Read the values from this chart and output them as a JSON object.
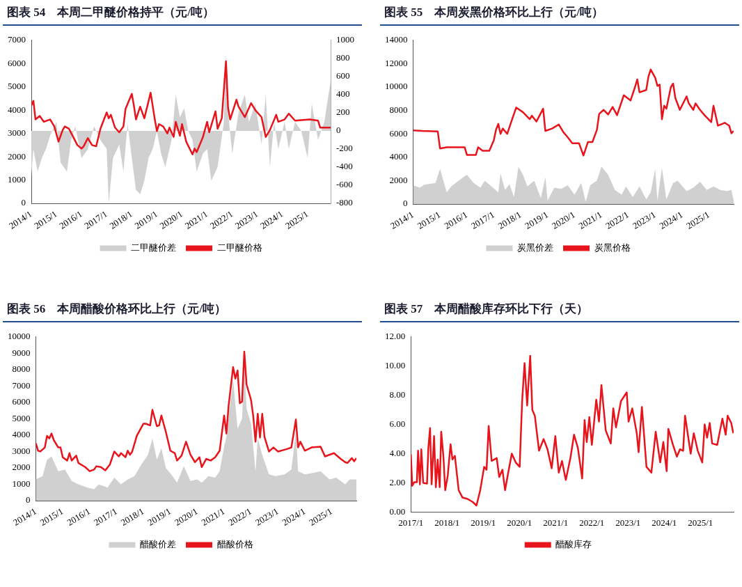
{
  "chart_data": [
    {
      "type": "line",
      "title": "图表 54　本周二甲醚价格持平（元/吨）",
      "legend": "bottom",
      "grid": false,
      "marker": "none",
      "xlim": [
        "2014-01",
        "2025-12"
      ],
      "xticks": [
        {
          "value": "2014-01",
          "label": "2014/1"
        },
        {
          "value": "2015-01",
          "label": "2015/1"
        },
        {
          "value": "2016-01",
          "label": "2016/1"
        },
        {
          "value": "2017-01",
          "label": "2017/1"
        },
        {
          "value": "2018-01",
          "label": "2018/1"
        },
        {
          "value": "2019-01",
          "label": "2019/1"
        },
        {
          "value": "2020-01",
          "label": "2020/1"
        },
        {
          "value": "2021-01",
          "label": "2021/1"
        },
        {
          "value": "2022-01",
          "label": "2022/1"
        },
        {
          "value": "2023-01",
          "label": "2023/1"
        },
        {
          "value": "2024-01",
          "label": "2024/1"
        },
        {
          "value": "2025-01",
          "label": "2025/1"
        }
      ],
      "ylim": [
        0,
        7000
      ],
      "yticks": [
        0,
        1000,
        2000,
        3000,
        4000,
        5000,
        6000,
        7000
      ],
      "y2lim": [
        -800,
        1000
      ],
      "y2ticks": [
        -800,
        -600,
        -400,
        -200,
        0,
        200,
        400,
        600,
        800,
        1000
      ],
      "series": [
        {
          "name": "二甲醚价差",
          "type": "area",
          "axis": "y2",
          "color": "#d0d0d0",
          "x": [
            "2014-01",
            "2014-02",
            "2014-04",
            "2014-06",
            "2014-08",
            "2014-10",
            "2014-12",
            "2015-01",
            "2015-03",
            "2015-06",
            "2015-08",
            "2015-10",
            "2016-01",
            "2016-04",
            "2016-07",
            "2016-10",
            "2017-01",
            "2017-02",
            "2017-04",
            "2017-07",
            "2017-09",
            "2017-11",
            "2018-01",
            "2018-03",
            "2018-05",
            "2018-07",
            "2018-09",
            "2018-11",
            "2019-01",
            "2019-03",
            "2019-05",
            "2019-08",
            "2019-10",
            "2019-12",
            "2020-02",
            "2020-04",
            "2020-06",
            "2020-08",
            "2020-11",
            "2021-01",
            "2021-03",
            "2021-06",
            "2021-09",
            "2021-10",
            "2021-11",
            "2022-01",
            "2022-04",
            "2022-07",
            "2022-09",
            "2022-12",
            "2023-03",
            "2023-05",
            "2023-07",
            "2023-09",
            "2023-11",
            "2024-02",
            "2024-04",
            "2024-07",
            "2024-10",
            "2025-01",
            "2025-03",
            "2025-06",
            "2025-09",
            "2025-12"
          ],
          "values": [
            -500,
            -200,
            -450,
            -300,
            -200,
            -50,
            50,
            100,
            -350,
            -450,
            -100,
            50,
            -300,
            -200,
            50,
            -100,
            -200,
            -800,
            -300,
            -150,
            -450,
            80,
            -300,
            -650,
            -700,
            -550,
            -300,
            -200,
            0,
            -250,
            -400,
            -100,
            400,
            150,
            250,
            0,
            -100,
            -450,
            -250,
            -200,
            -550,
            -400,
            100,
            850,
            200,
            -250,
            200,
            400,
            100,
            300,
            -150,
            400,
            -400,
            100,
            -200,
            100,
            -200,
            100,
            0,
            -300,
            300,
            -100,
            100,
            550
          ]
        },
        {
          "name": "二甲醚价格",
          "type": "line",
          "color": "#e8141c",
          "x": [
            "2014-01",
            "2014-02",
            "2014-03",
            "2014-05",
            "2014-07",
            "2014-10",
            "2014-12",
            "2015-02",
            "2015-04",
            "2015-05",
            "2015-07",
            "2015-09",
            "2015-11",
            "2016-01",
            "2016-02",
            "2016-04",
            "2016-06",
            "2016-08",
            "2016-10",
            "2017-01",
            "2017-02",
            "2017-03",
            "2017-05",
            "2017-07",
            "2017-09",
            "2017-10",
            "2018-01",
            "2018-02",
            "2018-03",
            "2018-05",
            "2018-07",
            "2018-10",
            "2018-12",
            "2019-01",
            "2019-02",
            "2019-04",
            "2019-06",
            "2019-07",
            "2019-09",
            "2019-10",
            "2019-12",
            "2020-01",
            "2020-03",
            "2020-06",
            "2020-07",
            "2020-08",
            "2020-11",
            "2021-01",
            "2021-02",
            "2021-05",
            "2021-06",
            "2021-08",
            "2021-10",
            "2021-11",
            "2021-12",
            "2022-03",
            "2022-04",
            "2022-07",
            "2022-10",
            "2022-12",
            "2023-03",
            "2023-05",
            "2023-07",
            "2023-10",
            "2023-11",
            "2024-02",
            "2024-04",
            "2024-07",
            "2025-02",
            "2025-06",
            "2025-07",
            "2025-12"
          ],
          "values": [
            4200,
            4400,
            3600,
            3750,
            3500,
            3600,
            3300,
            2650,
            3150,
            3300,
            3200,
            2850,
            2500,
            2350,
            2450,
            2800,
            2500,
            2450,
            3200,
            3900,
            3650,
            3800,
            3250,
            3050,
            3300,
            4050,
            4700,
            4200,
            3600,
            4150,
            3650,
            4750,
            3600,
            3100,
            3400,
            3300,
            3000,
            3250,
            2850,
            3500,
            2900,
            3400,
            2650,
            2100,
            2350,
            2200,
            2850,
            3500,
            3050,
            3950,
            3200,
            3650,
            6100,
            4100,
            3600,
            4450,
            4150,
            3700,
            4300,
            4000,
            3700,
            2850,
            3150,
            3800,
            3500,
            3600,
            3850,
            3550,
            3600,
            3550,
            3250,
            3250
          ]
        }
      ]
    },
    {
      "type": "line",
      "title": "图表 55　本周炭黑价格环比上行（元/吨）",
      "legend": "bottom",
      "grid": false,
      "marker": "none",
      "xlim": [
        "2014-01",
        "2025-12"
      ],
      "xticks": [
        {
          "value": "2014-01",
          "label": "2014/1"
        },
        {
          "value": "2015-01",
          "label": "2015/1"
        },
        {
          "value": "2016-01",
          "label": "2016/1"
        },
        {
          "value": "2017-01",
          "label": "2017/1"
        },
        {
          "value": "2018-01",
          "label": "2018/1"
        },
        {
          "value": "2019-01",
          "label": "2019/1"
        },
        {
          "value": "2020-01",
          "label": "2020/1"
        },
        {
          "value": "2021-01",
          "label": "2021/1"
        },
        {
          "value": "2022-01",
          "label": "2022/1"
        },
        {
          "value": "2023-01",
          "label": "2023/1"
        },
        {
          "value": "2024-01",
          "label": "2024/1"
        },
        {
          "value": "2025-01",
          "label": "2025/1"
        }
      ],
      "ylim": [
        0,
        14000
      ],
      "yticks": [
        0,
        2000,
        4000,
        6000,
        8000,
        10000,
        12000,
        14000
      ],
      "series": [
        {
          "name": "炭黑价差",
          "type": "area",
          "color": "#d0d0d0",
          "x": [
            "2014-01",
            "2014-04",
            "2014-06",
            "2014-11",
            "2015-01",
            "2015-04",
            "2015-06",
            "2015-10",
            "2016-01",
            "2016-04",
            "2016-07",
            "2016-09",
            "2016-12",
            "2017-03",
            "2017-04",
            "2017-06",
            "2017-08",
            "2017-10",
            "2017-12",
            "2018-02",
            "2018-04",
            "2018-07",
            "2018-10",
            "2018-12",
            "2019-01",
            "2019-04",
            "2019-07",
            "2019-10",
            "2020-01",
            "2020-04",
            "2020-06",
            "2020-08",
            "2020-11",
            "2021-01",
            "2021-04",
            "2021-07",
            "2021-10",
            "2021-12",
            "2022-03",
            "2022-06",
            "2022-09",
            "2022-11",
            "2023-01",
            "2023-02",
            "2023-04",
            "2023-06",
            "2023-09",
            "2023-11",
            "2024-03",
            "2024-06",
            "2024-09",
            "2024-12",
            "2025-03",
            "2025-06",
            "2025-09",
            "2025-11",
            "2025-12"
          ],
          "values": [
            1600,
            1400,
            1650,
            1800,
            3000,
            1000,
            1500,
            2100,
            2500,
            1800,
            1400,
            2000,
            1500,
            1000,
            2600,
            1200,
            1700,
            600,
            3200,
            2500,
            1500,
            2000,
            500,
            2300,
            300,
            1400,
            1300,
            1600,
            800,
            1800,
            200,
            1600,
            2000,
            3200,
            2500,
            1200,
            800,
            1500,
            600,
            1500,
            400,
            1000,
            3000,
            300,
            3100,
            400,
            1800,
            2000,
            1100,
            1400,
            1900,
            1200,
            1500,
            1200,
            1100,
            1200,
            300
          ]
        },
        {
          "name": "炭黑价格",
          "type": "line",
          "color": "#e8141c",
          "x": [
            "2014-01",
            "2014-05",
            "2014-12",
            "2015-01",
            "2015-04",
            "2015-12",
            "2016-01",
            "2016-05",
            "2016-06",
            "2016-08",
            "2016-11",
            "2017-01",
            "2017-02",
            "2017-03",
            "2017-04",
            "2017-05",
            "2017-07",
            "2017-09",
            "2017-11",
            "2018-02",
            "2018-05",
            "2018-06",
            "2018-08",
            "2018-11",
            "2018-12",
            "2019-03",
            "2019-06",
            "2019-08",
            "2019-10",
            "2019-12",
            "2020-03",
            "2020-05",
            "2020-07",
            "2020-09",
            "2020-11",
            "2020-12",
            "2021-02",
            "2021-04",
            "2021-06",
            "2021-08",
            "2021-11",
            "2022-02",
            "2022-04",
            "2022-05",
            "2022-06",
            "2022-09",
            "2022-10",
            "2022-11",
            "2023-01",
            "2023-02",
            "2023-03",
            "2023-04",
            "2023-05",
            "2023-06",
            "2023-08",
            "2023-09",
            "2023-10",
            "2023-12",
            "2024-03",
            "2024-04",
            "2024-06",
            "2024-07",
            "2024-09",
            "2024-11",
            "2025-02",
            "2025-03",
            "2025-05",
            "2025-07",
            "2025-08",
            "2025-10",
            "2025-11",
            "2025-12"
          ],
          "values": [
            6300,
            6250,
            6200,
            4750,
            4850,
            4850,
            4200,
            4200,
            4850,
            4550,
            4550,
            5450,
            6350,
            6850,
            6000,
            6450,
            6000,
            7150,
            8250,
            7850,
            7250,
            7550,
            7050,
            8150,
            6250,
            6450,
            6800,
            6150,
            5700,
            5200,
            5200,
            4150,
            5300,
            5300,
            6350,
            7700,
            8050,
            7650,
            8300,
            7600,
            9300,
            8850,
            10000,
            10650,
            9550,
            9750,
            10900,
            11500,
            10800,
            10100,
            10200,
            7250,
            8400,
            8150,
            10000,
            10300,
            9050,
            8050,
            9200,
            8600,
            8050,
            8600,
            8050,
            7600,
            7000,
            8400,
            6700,
            6850,
            6950,
            6700,
            6050,
            6250
          ]
        }
      ]
    },
    {
      "type": "line",
      "title": "图表 56　本周醋酸价格环比上行（元/吨）",
      "legend": "bottom",
      "grid": false,
      "marker": "none",
      "xlim": [
        "2014-01",
        "2025-12"
      ],
      "xticks": [
        {
          "value": "2014-01",
          "label": "2014/1"
        },
        {
          "value": "2015-01",
          "label": "2015/1"
        },
        {
          "value": "2016-01",
          "label": "2016/1"
        },
        {
          "value": "2017-01",
          "label": "2017/1"
        },
        {
          "value": "2018-01",
          "label": "2018/1"
        },
        {
          "value": "2019-01",
          "label": "2019/1"
        },
        {
          "value": "2020-01",
          "label": "2020/1"
        },
        {
          "value": "2021-01",
          "label": "2021/1"
        },
        {
          "value": "2022-01",
          "label": "2022/1"
        },
        {
          "value": "2023-01",
          "label": "2023/1"
        },
        {
          "value": "2024-01",
          "label": "2024/1"
        },
        {
          "value": "2025-01",
          "label": "2025/1"
        }
      ],
      "ylim": [
        0,
        10000
      ],
      "yticks": [
        0,
        1000,
        2000,
        3000,
        4000,
        5000,
        6000,
        7000,
        8000,
        9000,
        10000
      ],
      "series": [
        {
          "name": "醋酸价差",
          "type": "area",
          "color": "#d0d0d0",
          "x": [
            "2014-01",
            "2014-04",
            "2014-06",
            "2014-08",
            "2014-11",
            "2015-02",
            "2015-05",
            "2015-08",
            "2015-12",
            "2016-03",
            "2016-05",
            "2016-09",
            "2016-12",
            "2017-03",
            "2017-06",
            "2017-09",
            "2017-12",
            "2018-03",
            "2018-05",
            "2018-07",
            "2018-09",
            "2018-11",
            "2019-02",
            "2019-04",
            "2019-07",
            "2019-10",
            "2020-01",
            "2020-03",
            "2020-06",
            "2020-09",
            "2020-11",
            "2021-01",
            "2021-02",
            "2021-05",
            "2021-07",
            "2021-09",
            "2021-10",
            "2021-11",
            "2022-01",
            "2022-03",
            "2022-04",
            "2022-06",
            "2022-09",
            "2022-12",
            "2023-04",
            "2023-07",
            "2023-09",
            "2023-10",
            "2024-01",
            "2024-05",
            "2024-08",
            "2024-12",
            "2025-03",
            "2025-07",
            "2025-09",
            "2025-12"
          ],
          "values": [
            1300,
            1500,
            2500,
            2700,
            1800,
            1900,
            1200,
            1000,
            800,
            700,
            1000,
            800,
            1400,
            1000,
            1300,
            1500,
            2200,
            2800,
            3800,
            2500,
            3200,
            2000,
            1500,
            1100,
            2100,
            1200,
            1300,
            1100,
            1500,
            1400,
            1800,
            3300,
            3900,
            7400,
            4400,
            5000,
            8400,
            5600,
            4700,
            1800,
            3800,
            2800,
            1600,
            1500,
            1600,
            1900,
            4200,
            1800,
            1600,
            1700,
            1800,
            1300,
            1400,
            1000,
            1300,
            1300
          ]
        },
        {
          "name": "醋酸价格",
          "type": "line",
          "color": "#e8141c",
          "x": [
            "2014-01",
            "2014-02",
            "2014-03",
            "2014-05",
            "2014-06",
            "2014-07",
            "2014-08",
            "2014-09",
            "2014-11",
            "2014-12",
            "2015-01",
            "2015-03",
            "2015-04",
            "2015-05",
            "2015-07",
            "2015-08",
            "2015-11",
            "2016-01",
            "2016-03",
            "2016-04",
            "2016-06",
            "2016-08",
            "2016-10",
            "2016-12",
            "2017-02",
            "2017-03",
            "2017-05",
            "2017-06",
            "2017-07",
            "2017-08",
            "2017-10",
            "2018-01",
            "2018-02",
            "2018-04",
            "2018-05",
            "2018-07",
            "2018-08",
            "2018-09",
            "2018-11",
            "2019-01",
            "2019-03",
            "2019-04",
            "2019-06",
            "2019-08",
            "2019-10",
            "2019-12",
            "2020-02",
            "2020-03",
            "2020-05",
            "2020-07",
            "2020-09",
            "2020-11",
            "2021-01",
            "2021-02",
            "2021-03",
            "2021-05",
            "2021-06",
            "2021-07",
            "2021-08",
            "2021-09",
            "2021-10",
            "2021-11",
            "2022-01",
            "2022-02",
            "2022-03",
            "2022-04",
            "2022-05",
            "2022-06",
            "2022-07",
            "2022-09",
            "2022-11",
            "2023-01",
            "2023-05",
            "2023-07",
            "2023-09",
            "2023-10",
            "2023-11",
            "2024-01",
            "2024-04",
            "2024-08",
            "2024-10",
            "2025-02",
            "2025-05",
            "2025-07",
            "2025-08",
            "2025-10",
            "2025-11",
            "2025-12"
          ],
          "values": [
            3500,
            3050,
            3000,
            3250,
            3950,
            3800,
            4100,
            3700,
            3250,
            3250,
            2650,
            2450,
            2900,
            2450,
            2750,
            2300,
            2050,
            1800,
            1900,
            2100,
            2050,
            1850,
            2200,
            3000,
            2700,
            2900,
            2650,
            3050,
            2800,
            3000,
            3950,
            4700,
            4700,
            4600,
            5550,
            4550,
            4600,
            5200,
            4200,
            3050,
            2900,
            2450,
            2750,
            3600,
            2800,
            2350,
            2650,
            2050,
            2550,
            2450,
            2650,
            3050,
            5200,
            4100,
            5800,
            8150,
            7450,
            7950,
            5950,
            6050,
            9100,
            7100,
            6150,
            5150,
            3600,
            5300,
            3850,
            5300,
            3900,
            3000,
            3250,
            3000,
            3150,
            3250,
            4950,
            3250,
            3600,
            3050,
            3250,
            3300,
            2700,
            2900,
            2550,
            2350,
            2300,
            2600,
            2400,
            2600
          ]
        }
      ]
    },
    {
      "type": "line",
      "title": "图表 57　本周醋酸库存环比下行（天）",
      "legend": "bottom",
      "grid": false,
      "marker": "none",
      "xlim": [
        "2017-01",
        "2025-12"
      ],
      "xticks": [
        {
          "value": "2017-01",
          "label": "2017/1"
        },
        {
          "value": "2018-01",
          "label": "2018/1"
        },
        {
          "value": "2019-01",
          "label": "2019/1"
        },
        {
          "value": "2020-01",
          "label": "2020/1"
        },
        {
          "value": "2021-01",
          "label": "2021/1"
        },
        {
          "value": "2022-01",
          "label": "2022/1"
        },
        {
          "value": "2023-01",
          "label": "2023/1"
        },
        {
          "value": "2024-01",
          "label": "2024/1"
        },
        {
          "value": "2025-01",
          "label": "2025/1"
        }
      ],
      "ylim": [
        0,
        12
      ],
      "yticks": [
        {
          "value": 0,
          "label": "0.00"
        },
        {
          "value": 2,
          "label": "2.00"
        },
        {
          "value": 4,
          "label": "4.00"
        },
        {
          "value": 6,
          "label": "6.00"
        },
        {
          "value": 8,
          "label": "8.00"
        },
        {
          "value": 10,
          "label": "10.00"
        },
        {
          "value": 12,
          "label": "12.00"
        }
      ],
      "series": [
        {
          "name": "醋酸库存",
          "type": "line",
          "color": "#e8141c",
          "x": [
            "2017-01-01",
            "2017-01-15",
            "2017-02-05",
            "2017-03-01",
            "2017-03-13",
            "2017-04-01",
            "2017-04-15",
            "2017-05-04",
            "2017-06-12",
            "2017-06-25",
            "2017-07-12",
            "2017-07-28",
            "2017-08-22",
            "2017-09-10",
            "2017-09-28",
            "2017-10-18",
            "2017-11-03",
            "2017-11-25",
            "2017-12-13",
            "2018-01-08",
            "2018-02-06",
            "2018-02-25",
            "2018-03-19",
            "2018-04-27",
            "2018-06-04",
            "2018-07-25",
            "2018-09-15",
            "2018-10-24",
            "2018-12-01",
            "2019-01-10",
            "2019-02-04",
            "2019-02-25",
            "2019-03-25",
            "2019-05-15",
            "2019-06-10",
            "2019-07-12",
            "2019-08-08",
            "2019-09-12",
            "2019-10-15",
            "2019-11-24",
            "2020-01-03",
            "2020-01-28",
            "2020-02-22",
            "2020-03-18",
            "2020-04-18",
            "2020-05-09",
            "2020-06-04",
            "2020-07-16",
            "2020-09-01",
            "2020-10-10",
            "2020-11-22",
            "2020-12-28",
            "2021-02-02",
            "2021-03-04",
            "2021-04-12",
            "2021-05-28",
            "2021-07-04",
            "2021-08-12",
            "2021-09-25",
            "2021-10-19",
            "2021-11-10",
            "2021-12-06",
            "2022-01-01",
            "2022-02-15",
            "2022-03-12",
            "2022-04-06",
            "2022-05-19",
            "2022-07-09",
            "2022-08-04",
            "2022-09-01",
            "2022-10-21",
            "2022-12-18",
            "2023-01-06",
            "2023-02-13",
            "2023-03-28",
            "2023-04-16",
            "2023-05-19",
            "2023-07-04",
            "2023-08-23",
            "2023-10-06",
            "2023-11-21",
            "2023-12-22",
            "2024-01-25",
            "2024-02-12",
            "2024-03-28",
            "2024-05-07",
            "2024-06-07",
            "2024-07-09",
            "2024-07-28",
            "2024-09-24",
            "2024-10-25",
            "2024-12-04",
            "2025-01-19",
            "2025-02-13",
            "2025-03-07",
            "2025-04-03",
            "2025-04-28",
            "2025-06-18",
            "2025-08-09",
            "2025-09-12",
            "2025-10-01",
            "2025-11-07",
            "2025-11-28"
          ],
          "values": [
            3.96,
            1.8,
            2.05,
            2.05,
            4.2,
            1.9,
            4.3,
            2.0,
            1.95,
            4.35,
            5.75,
            1.9,
            5.2,
            1.7,
            3.6,
            1.7,
            5.5,
            3.8,
            1.5,
            2.5,
            4.65,
            3.6,
            3.85,
            1.5,
            1.0,
            0.9,
            0.7,
            0.45,
            1.5,
            3.1,
            2.9,
            5.9,
            3.5,
            3.7,
            2.4,
            2.9,
            1.5,
            2.8,
            4.0,
            3.4,
            3.1,
            7.6,
            10.2,
            7.3,
            10.7,
            7.0,
            6.6,
            4.2,
            5.0,
            4.3,
            3.0,
            5.2,
            2.7,
            3.5,
            2.2,
            3.7,
            5.3,
            4.4,
            2.3,
            6.3,
            4.8,
            6.5,
            4.6,
            7.7,
            6.2,
            8.7,
            5.6,
            4.7,
            7.1,
            5.8,
            7.6,
            8.2,
            6.2,
            7.1,
            5.4,
            4.1,
            7.2,
            3.1,
            2.7,
            5.5,
            3.4,
            4.8,
            2.8,
            5.7,
            4.6,
            3.8,
            4.3,
            4.2,
            6.6,
            4.0,
            5.4,
            4.2,
            3.4,
            6.0,
            5.1,
            6.1,
            4.7,
            4.6,
            6.4,
            5.3,
            6.6,
            6.1,
            5.4
          ]
        }
      ]
    }
  ]
}
